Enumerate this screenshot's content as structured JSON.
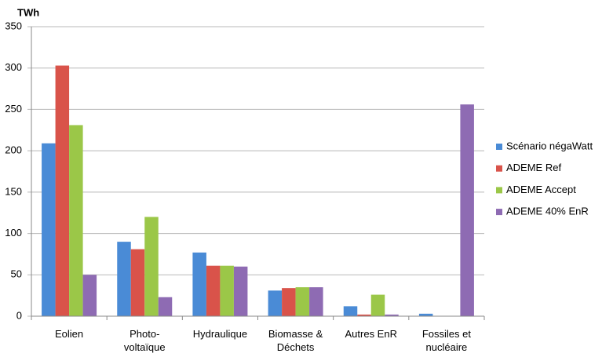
{
  "chart_data": {
    "type": "bar",
    "y_label": "TWh",
    "categories": [
      "Eolien",
      "Photo-\nvoltaïque",
      "Hydraulique",
      "Biomasse &\nDéchets",
      "Autres EnR",
      "Fossiles et\nnucléaire"
    ],
    "series": [
      {
        "name": "Scénario négaWatt",
        "color": "#4a8bd6",
        "values": [
          209,
          90,
          77,
          31,
          12,
          3
        ]
      },
      {
        "name": "ADEME Ref",
        "color": "#d9534a",
        "values": [
          303,
          81,
          61,
          34,
          2,
          0
        ]
      },
      {
        "name": "ADEME Accept",
        "color": "#9bc748",
        "values": [
          231,
          120,
          61,
          35,
          26,
          0
        ]
      },
      {
        "name": "ADEME 40% EnR",
        "color": "#8e6bb3",
        "values": [
          50,
          23,
          60,
          35,
          2,
          256
        ]
      }
    ],
    "ylim": [
      0,
      350
    ],
    "yticks": [
      0,
      50,
      100,
      150,
      200,
      250,
      300,
      350
    ],
    "grid": true,
    "legend": "right"
  }
}
